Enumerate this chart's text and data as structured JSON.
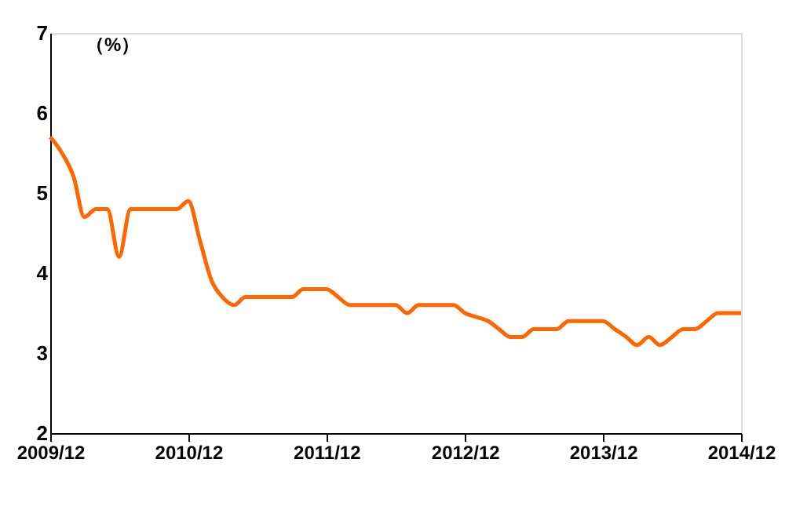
{
  "chart_data": {
    "type": "line",
    "ylabel": "（%）",
    "x": [
      "2009-12",
      "2010-01",
      "2010-02",
      "2010-03",
      "2010-04",
      "2010-05",
      "2010-06",
      "2010-07",
      "2010-08",
      "2010-09",
      "2010-10",
      "2010-11",
      "2010-12",
      "2011-01",
      "2011-02",
      "2011-03",
      "2011-04",
      "2011-05",
      "2011-06",
      "2011-07",
      "2011-08",
      "2011-09",
      "2011-10",
      "2011-11",
      "2011-12",
      "2012-01",
      "2012-02",
      "2012-03",
      "2012-04",
      "2012-05",
      "2012-06",
      "2012-07",
      "2012-08",
      "2012-09",
      "2012-10",
      "2012-11",
      "2012-12",
      "2013-01",
      "2013-02",
      "2013-03",
      "2013-04",
      "2013-05",
      "2013-06",
      "2013-07",
      "2013-08",
      "2013-09",
      "2013-10",
      "2013-11",
      "2013-12",
      "2014-01",
      "2014-02",
      "2014-03",
      "2014-04",
      "2014-05",
      "2014-06",
      "2014-07",
      "2014-08",
      "2014-09",
      "2014-10",
      "2014-11",
      "2014-12"
    ],
    "series": [
      {
        "color": "#ff6600",
        "values": [
          5.7,
          5.5,
          5.2,
          4.7,
          4.8,
          4.8,
          4.2,
          4.8,
          4.8,
          4.8,
          4.8,
          4.8,
          4.9,
          4.4,
          3.9,
          3.7,
          3.6,
          3.7,
          3.7,
          3.7,
          3.7,
          3.7,
          3.8,
          3.8,
          3.8,
          3.7,
          3.6,
          3.6,
          3.6,
          3.6,
          3.6,
          3.5,
          3.6,
          3.6,
          3.6,
          3.6,
          3.5,
          3.45,
          3.4,
          3.3,
          3.2,
          3.2,
          3.3,
          3.3,
          3.3,
          3.4,
          3.4,
          3.4,
          3.4,
          3.3,
          3.2,
          3.1,
          3.2,
          3.1,
          3.2,
          3.3,
          3.3,
          3.4,
          3.5,
          3.5,
          3.5
        ]
      }
    ],
    "xlim": [
      "2009-12",
      "2014-12"
    ],
    "xticks": [
      {
        "value": "2009-12",
        "label": "2009/12"
      },
      {
        "value": "2010-12",
        "label": "2010/12"
      },
      {
        "value": "2011-12",
        "label": "2011/12"
      },
      {
        "value": "2012-12",
        "label": "2012/12"
      },
      {
        "value": "2013-12",
        "label": "2013/12"
      },
      {
        "value": "2014-12",
        "label": "2014/12"
      }
    ],
    "ylim": [
      2,
      7
    ],
    "yticks": [
      2,
      3,
      4,
      5,
      6,
      7
    ],
    "grid": false,
    "marker": "none",
    "line_style": "solid"
  }
}
